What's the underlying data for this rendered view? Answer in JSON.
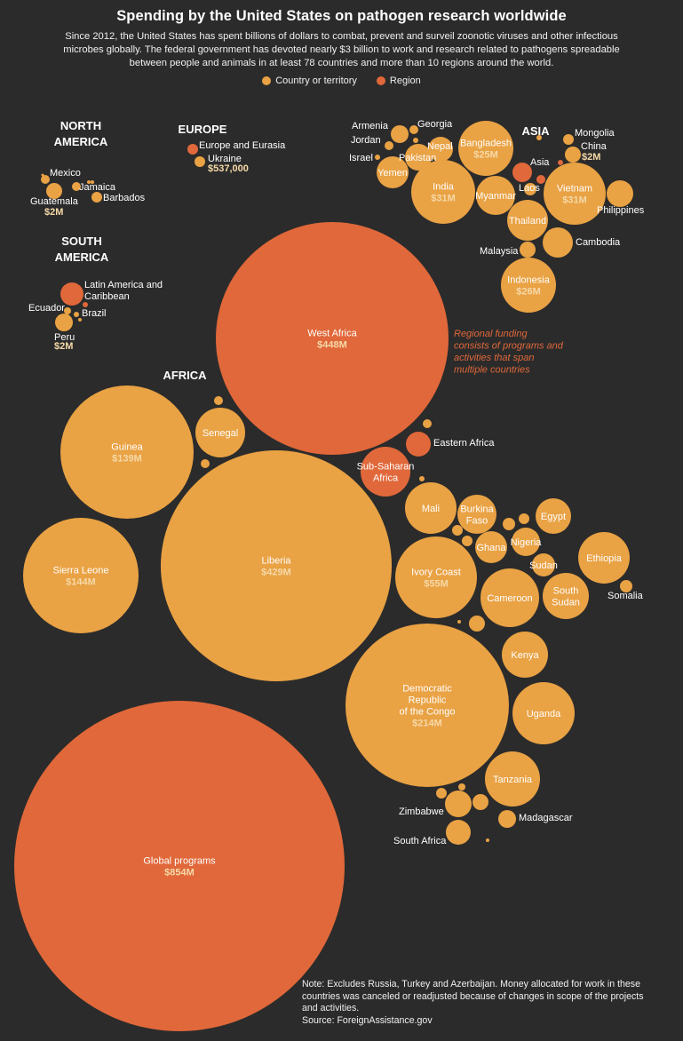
{
  "title": "Spending by the United States on pathogen research worldwide",
  "subtitle": "Since 2012, the United States has spent billions of dollars to combat, prevent and surveil zoonotic viruses and other infectious microbes globally. The federal government has devoted nearly $3 billion to work and research related to pathogens spreadable between people and animals in at least 78 countries and more than 10 regions around the world.",
  "legend": [
    {
      "label": "Country or territory",
      "color": "#e9a244"
    },
    {
      "label": "Region",
      "color": "#e0683a"
    }
  ],
  "annotation": "Regional funding consists of programs and activities that span multiple countries",
  "note": "Note: Excludes Russia, Turkey and Azerbaijan. Money allocated for work in these countries was canceled or readjusted because of changes in scope of the projects and activities.",
  "source": "Source: ForeignAssistance.gov",
  "chart_data": {
    "type": "bubble",
    "value_unit": "USD",
    "colors": {
      "country": "#e9a244",
      "region": "#e0683a"
    },
    "groups": [
      "NORTH AMERICA",
      "EUROPE",
      "ASIA",
      "SOUTH AMERICA",
      "AFRICA"
    ],
    "series": [
      {
        "name": "Global programs",
        "kind": "region",
        "value": "$854M"
      },
      {
        "name": "West Africa",
        "kind": "region",
        "value": "$448M"
      },
      {
        "name": "Liberia",
        "kind": "country",
        "value": "$429M"
      },
      {
        "name": "Democratic Republic of the Congo",
        "kind": "country",
        "value": "$214M"
      },
      {
        "name": "Sierra Leone",
        "kind": "country",
        "value": "$144M"
      },
      {
        "name": "Guinea",
        "kind": "country",
        "value": "$139M"
      },
      {
        "name": "Ivory Coast",
        "kind": "country",
        "value": "$55M"
      },
      {
        "name": "India",
        "kind": "country",
        "value": "$31M"
      },
      {
        "name": "Vietnam",
        "kind": "country",
        "value": "$31M"
      },
      {
        "name": "Indonesia",
        "kind": "country",
        "value": "$26M"
      },
      {
        "name": "Bangladesh",
        "kind": "country",
        "value": "$25M"
      },
      {
        "name": "China",
        "kind": "country",
        "value": "$2M"
      },
      {
        "name": "Guatemala",
        "kind": "country",
        "value": "$2M"
      },
      {
        "name": "Peru",
        "kind": "country",
        "value": "$2M"
      },
      {
        "name": "Ukraine",
        "kind": "country",
        "value": "$537,000"
      },
      {
        "name": "Senegal",
        "kind": "country"
      },
      {
        "name": "Mali",
        "kind": "country"
      },
      {
        "name": "Burkina Faso",
        "kind": "country"
      },
      {
        "name": "Ghana",
        "kind": "country"
      },
      {
        "name": "Nigeria",
        "kind": "country"
      },
      {
        "name": "Egypt",
        "kind": "country"
      },
      {
        "name": "Ethiopia",
        "kind": "country"
      },
      {
        "name": "Sudan",
        "kind": "country"
      },
      {
        "name": "South Sudan",
        "kind": "country"
      },
      {
        "name": "Somalia",
        "kind": "country"
      },
      {
        "name": "Cameroon",
        "kind": "country"
      },
      {
        "name": "Kenya",
        "kind": "country"
      },
      {
        "name": "Uganda",
        "kind": "country"
      },
      {
        "name": "Tanzania",
        "kind": "country"
      },
      {
        "name": "Madagascar",
        "kind": "country"
      },
      {
        "name": "Zimbabwe",
        "kind": "country"
      },
      {
        "name": "South Africa",
        "kind": "country"
      },
      {
        "name": "Eastern Africa",
        "kind": "region"
      },
      {
        "name": "Sub-Saharan Africa",
        "kind": "region"
      },
      {
        "name": "Thailand",
        "kind": "country"
      },
      {
        "name": "Cambodia",
        "kind": "country"
      },
      {
        "name": "Philippines",
        "kind": "country"
      },
      {
        "name": "Myanmar",
        "kind": "country"
      },
      {
        "name": "Laos",
        "kind": "country"
      },
      {
        "name": "Malaysia",
        "kind": "country"
      },
      {
        "name": "Mongolia",
        "kind": "country"
      },
      {
        "name": "Asia",
        "kind": "region"
      },
      {
        "name": "Yemen",
        "kind": "country"
      },
      {
        "name": "Pakistan",
        "kind": "country"
      },
      {
        "name": "Nepal",
        "kind": "country"
      },
      {
        "name": "Armenia",
        "kind": "country"
      },
      {
        "name": "Georgia",
        "kind": "country"
      },
      {
        "name": "Jordan",
        "kind": "country"
      },
      {
        "name": "Israel",
        "kind": "country"
      },
      {
        "name": "Europe and Eurasia",
        "kind": "region"
      },
      {
        "name": "Latin America and Caribbean",
        "kind": "region"
      },
      {
        "name": "Ecuador",
        "kind": "country"
      },
      {
        "name": "Brazil",
        "kind": "country"
      },
      {
        "name": "Mexico",
        "kind": "country"
      },
      {
        "name": "Jamaica",
        "kind": "country"
      },
      {
        "name": "Barbados",
        "kind": "country"
      }
    ]
  }
}
